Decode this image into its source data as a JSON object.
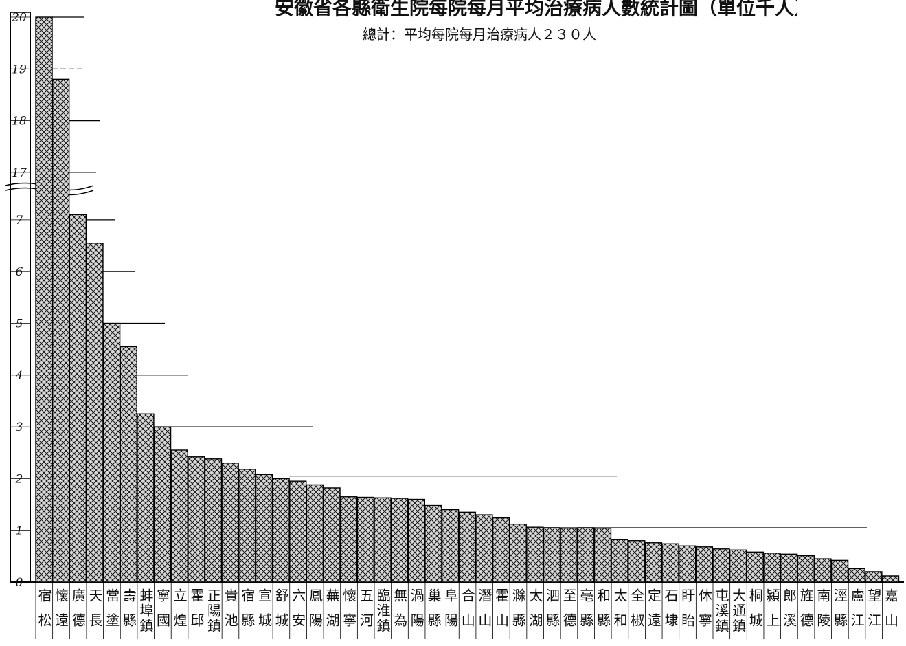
{
  "title": "安徽省各縣衛生院每院每月平均治療病人數統計圖（單位千人）",
  "subtitle": "總計：平均每院每月治療病人２３０人",
  "chart_data": {
    "type": "bar",
    "title": "安徽省各縣衛生院每院每月平均治療病人數統計圖（單位千人）",
    "subtitle": "總計：平均每院每月治療病人２３０人",
    "xlabel": "",
    "ylabel": "",
    "yticks": [
      "0",
      "1",
      "2",
      "3",
      "4",
      "5",
      "6",
      "7",
      "17",
      "18",
      "19",
      "20"
    ],
    "axis_break": "between 7 and 17",
    "ylim": [
      0,
      20
    ],
    "grid": false,
    "legend": "none",
    "colors": {
      "bar_fill": "#d8d8d8",
      "hatch": "#111111",
      "border": "#000000"
    },
    "categories": [
      "宿松",
      "懷遠",
      "廣德",
      "天長",
      "當塗",
      "壽縣",
      "蚌埠鎮",
      "寧國",
      "立煌",
      "霍邱",
      "正陽鎮",
      "貴池",
      "宿縣",
      "宣城",
      "舒城",
      "六安",
      "鳳陽",
      "蕪湖",
      "懷寧",
      "五河",
      "臨淮鎮",
      "無為",
      "渦陽",
      "巢縣",
      "阜陽",
      "合山",
      "潛山",
      "霍山",
      "滁縣",
      "太湖",
      "泗縣",
      "至德",
      "亳縣",
      "和縣",
      "太和",
      "全椒",
      "定遠",
      "石埭",
      "盱眙",
      "休寧",
      "屯溪鎮",
      "大通鎮",
      "桐城",
      "潁上",
      "郎溪",
      "旌德",
      "南陵",
      "涇縣",
      "盧江",
      "望江",
      "嘉山"
    ],
    "values": [
      20,
      18.8,
      7.1,
      6.55,
      5.0,
      4.55,
      3.25,
      3.0,
      2.55,
      2.42,
      2.38,
      2.3,
      2.18,
      2.08,
      2.0,
      1.95,
      1.88,
      1.82,
      1.65,
      1.64,
      1.63,
      1.62,
      1.6,
      1.48,
      1.4,
      1.35,
      1.3,
      1.24,
      1.12,
      1.06,
      1.05,
      1.04,
      1.05,
      1.04,
      0.82,
      0.8,
      0.76,
      0.74,
      0.7,
      0.68,
      0.64,
      0.62,
      0.58,
      0.56,
      0.54,
      0.51,
      0.45,
      0.42,
      0.26,
      0.2,
      0.12
    ]
  }
}
